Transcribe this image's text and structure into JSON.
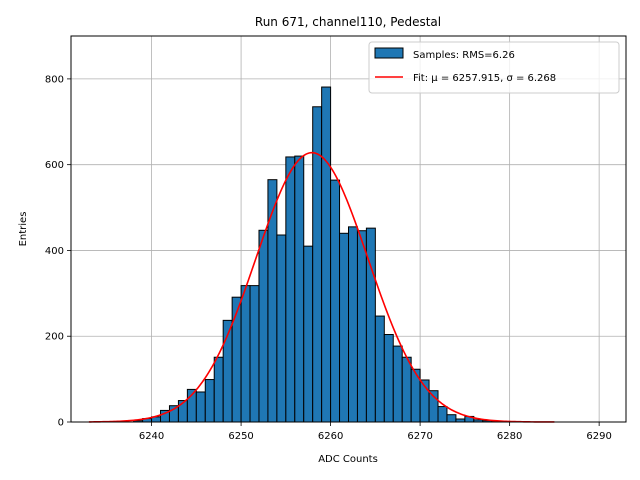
{
  "chart_data": {
    "type": "bar",
    "title": "Run 671, channel110, Pedestal",
    "xlabel": "ADC Counts",
    "ylabel": "Entries",
    "xlim": [
      6231,
      6293
    ],
    "ylim": [
      0,
      900
    ],
    "xticks": [
      6240,
      6250,
      6260,
      6270,
      6280,
      6290
    ],
    "yticks": [
      0,
      200,
      400,
      600,
      800
    ],
    "grid": true,
    "legend_position": "top-right",
    "colors": {
      "bar_fill": "#1f77b4",
      "bar_edge": "#000000",
      "fit_line": "#ff0000"
    },
    "histogram": {
      "name": "Samples: RMS=6.26",
      "bin_width": 1,
      "bins": [
        {
          "x": 6238,
          "y": 3
        },
        {
          "x": 6239,
          "y": 8
        },
        {
          "x": 6240,
          "y": 12
        },
        {
          "x": 6241,
          "y": 27
        },
        {
          "x": 6242,
          "y": 38
        },
        {
          "x": 6243,
          "y": 50
        },
        {
          "x": 6244,
          "y": 76
        },
        {
          "x": 6245,
          "y": 70
        },
        {
          "x": 6246,
          "y": 99
        },
        {
          "x": 6247,
          "y": 151
        },
        {
          "x": 6248,
          "y": 237
        },
        {
          "x": 6249,
          "y": 291
        },
        {
          "x": 6250,
          "y": 318
        },
        {
          "x": 6251,
          "y": 318
        },
        {
          "x": 6252,
          "y": 447
        },
        {
          "x": 6253,
          "y": 565
        },
        {
          "x": 6254,
          "y": 436
        },
        {
          "x": 6255,
          "y": 618
        },
        {
          "x": 6256,
          "y": 620
        },
        {
          "x": 6257,
          "y": 410
        },
        {
          "x": 6258,
          "y": 735
        },
        {
          "x": 6259,
          "y": 781
        },
        {
          "x": 6260,
          "y": 564
        },
        {
          "x": 6261,
          "y": 440
        },
        {
          "x": 6262,
          "y": 455
        },
        {
          "x": 6263,
          "y": 446
        },
        {
          "x": 6264,
          "y": 452
        },
        {
          "x": 6265,
          "y": 247
        },
        {
          "x": 6266,
          "y": 204
        },
        {
          "x": 6267,
          "y": 177
        },
        {
          "x": 6268,
          "y": 151
        },
        {
          "x": 6269,
          "y": 123
        },
        {
          "x": 6270,
          "y": 98
        },
        {
          "x": 6271,
          "y": 73
        },
        {
          "x": 6272,
          "y": 36
        },
        {
          "x": 6273,
          "y": 17
        },
        {
          "x": 6274,
          "y": 7
        },
        {
          "x": 6275,
          "y": 13
        },
        {
          "x": 6276,
          "y": 5
        },
        {
          "x": 6277,
          "y": 3
        },
        {
          "x": 6278,
          "y": 1
        }
      ]
    },
    "fit": {
      "name": "Fit: μ = 6257.915, σ = 6.268",
      "mu": 6257.915,
      "sigma": 6.268,
      "amplitude": 628,
      "x_range": [
        6233,
        6285
      ]
    }
  }
}
